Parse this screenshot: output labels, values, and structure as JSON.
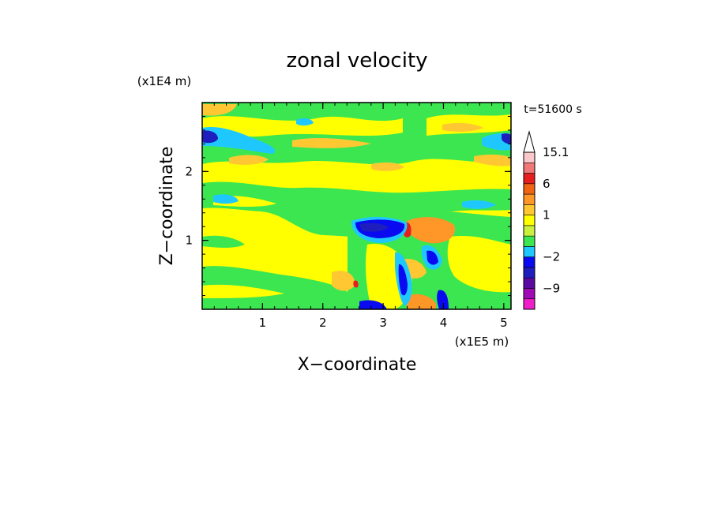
{
  "chart_data": {
    "type": "heatmap",
    "title": "zonal velocity",
    "xlabel": "X−coordinate",
    "ylabel": "Z−coordinate",
    "x_unit_label": "(x1E5 m)",
    "y_unit_label": "(x1E4 m)",
    "time_label": "t=51600 s",
    "xlim": [
      0,
      5.12
    ],
    "ylim": [
      0,
      3.0
    ],
    "x_ticks": [
      1,
      2,
      3,
      4,
      5
    ],
    "y_ticks": [
      1,
      2
    ],
    "colorbar": {
      "tick_labels": [
        "15.1",
        "6",
        "1",
        "−2",
        "−9"
      ],
      "levels": [
        {
          "color": "#f01ec8",
          "lower": -15,
          "upper": -12
        },
        {
          "color": "#a00ab4",
          "lower": -12,
          "upper": -9
        },
        {
          "color": "#5a0aa0",
          "lower": -9,
          "upper": -6
        },
        {
          "color": "#1e1ebe",
          "lower": -6,
          "upper": -3
        },
        {
          "color": "#0a0af0",
          "lower": -3,
          "upper": -2
        },
        {
          "color": "#1ec8ff",
          "lower": -2,
          "upper": -1
        },
        {
          "color": "#3ce650",
          "lower": -1,
          "upper": 0
        },
        {
          "color": "#c8f03c",
          "lower": 0,
          "upper": 0.5
        },
        {
          "color": "#ffff00",
          "lower": 0.5,
          "upper": 1
        },
        {
          "color": "#ffc832",
          "lower": 1,
          "upper": 2
        },
        {
          "color": "#ff9628",
          "lower": 2,
          "upper": 4
        },
        {
          "color": "#f06414",
          "lower": 4,
          "upper": 6
        },
        {
          "color": "#e61e1e",
          "lower": 6,
          "upper": 9
        },
        {
          "color": "#f07878",
          "lower": 9,
          "upper": 12
        },
        {
          "color": "#fac8c8",
          "lower": 12,
          "upper": 15.1
        }
      ]
    },
    "field": {
      "description_layers": [
        {
          "z": 2.5,
          "dominant": "green",
          "note": "upper green band with cyan and blue patches"
        },
        {
          "z": 2.1,
          "dominant": "yellow",
          "note": "yellow band with orange streaks"
        },
        {
          "z": 1.4,
          "dominant": "green",
          "note": "middle green/cyan band"
        },
        {
          "z": 0.8,
          "dominant": "yellow",
          "note": "yellow region on left half"
        },
        {
          "z": 0.2,
          "dominant": "green",
          "note": "lower green band"
        }
      ],
      "features": [
        {
          "x": 2.75,
          "z": 1.15,
          "value": -6,
          "label": "strong negative jet"
        },
        {
          "x": 3.5,
          "z": 1.15,
          "value": 5,
          "label": "positive core"
        },
        {
          "x": 3.85,
          "z": 0.75,
          "value": -5,
          "label": "negative cell"
        },
        {
          "x": 3.4,
          "z": 0.4,
          "value": -4,
          "label": "negative streak"
        },
        {
          "x": 0.2,
          "z": 2.5,
          "value": -4,
          "label": "negative patch left"
        },
        {
          "x": 5.0,
          "z": 2.5,
          "value": -4,
          "label": "negative patch right"
        },
        {
          "x": 2.5,
          "z": 0.35,
          "value": 3,
          "label": "orange patch"
        }
      ]
    }
  }
}
